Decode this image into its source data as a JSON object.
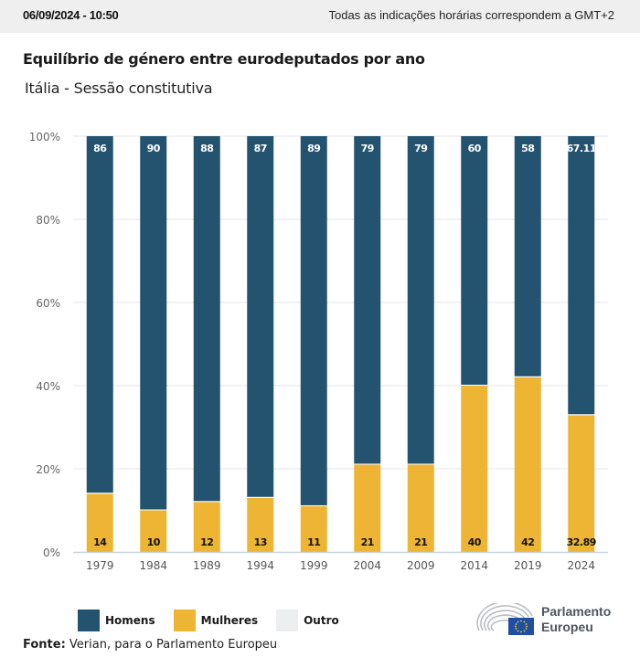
{
  "header": {
    "datetime": "06/09/2024 - 10:50",
    "timezone_note": "Todas as indicações horárias correspondem a GMT+2"
  },
  "title": "Equilíbrio de género entre eurodeputados por ano",
  "subtitle": "Itália - Sessão constitutiva",
  "colors": {
    "homens": "#24536f",
    "mulheres": "#edb533",
    "outro": "#eceef0"
  },
  "chart_data": {
    "type": "bar",
    "stacked": true,
    "title": "Equilíbrio de género entre eurodeputados por ano",
    "subtitle": "Itália - Sessão constitutiva",
    "xlabel": "",
    "ylabel": "",
    "ylim": [
      0,
      100
    ],
    "yticks": [
      "0%",
      "20%",
      "40%",
      "60%",
      "80%",
      "100%"
    ],
    "ytick_values": [
      0,
      20,
      40,
      60,
      80,
      100
    ],
    "grid": true,
    "categories": [
      "1979",
      "1984",
      "1989",
      "1994",
      "1999",
      "2004",
      "2009",
      "2014",
      "2019",
      "2024"
    ],
    "series": [
      {
        "name": "Mulheres",
        "values": [
          14,
          10,
          12,
          13,
          11,
          21,
          21,
          40,
          42,
          32.89
        ],
        "labels": [
          "14",
          "10",
          "12",
          "13",
          "11",
          "21",
          "21",
          "40",
          "42",
          "32.89"
        ]
      },
      {
        "name": "Homens",
        "values": [
          86,
          90,
          88,
          87,
          89,
          79,
          79,
          60,
          58,
          67.11
        ],
        "labels": [
          "86",
          "90",
          "88",
          "87",
          "89",
          "79",
          "79",
          "60",
          "58",
          "67.11"
        ]
      },
      {
        "name": "Outro",
        "values": [
          0,
          0,
          0,
          0,
          0,
          0,
          0,
          0,
          0,
          0
        ]
      }
    ],
    "legend": [
      "Homens",
      "Mulheres",
      "Outro"
    ],
    "legend_position": "bottom-left"
  },
  "legend": {
    "items": [
      {
        "label": "Homens",
        "key": "homens"
      },
      {
        "label": "Mulheres",
        "key": "mulheres"
      },
      {
        "label": "Outro",
        "key": "outro"
      }
    ]
  },
  "source": {
    "label": "Fonte:",
    "text": " Verian, para o Parlamento Europeu"
  },
  "logo": {
    "line1": "Parlamento",
    "line2": "Europeu"
  }
}
